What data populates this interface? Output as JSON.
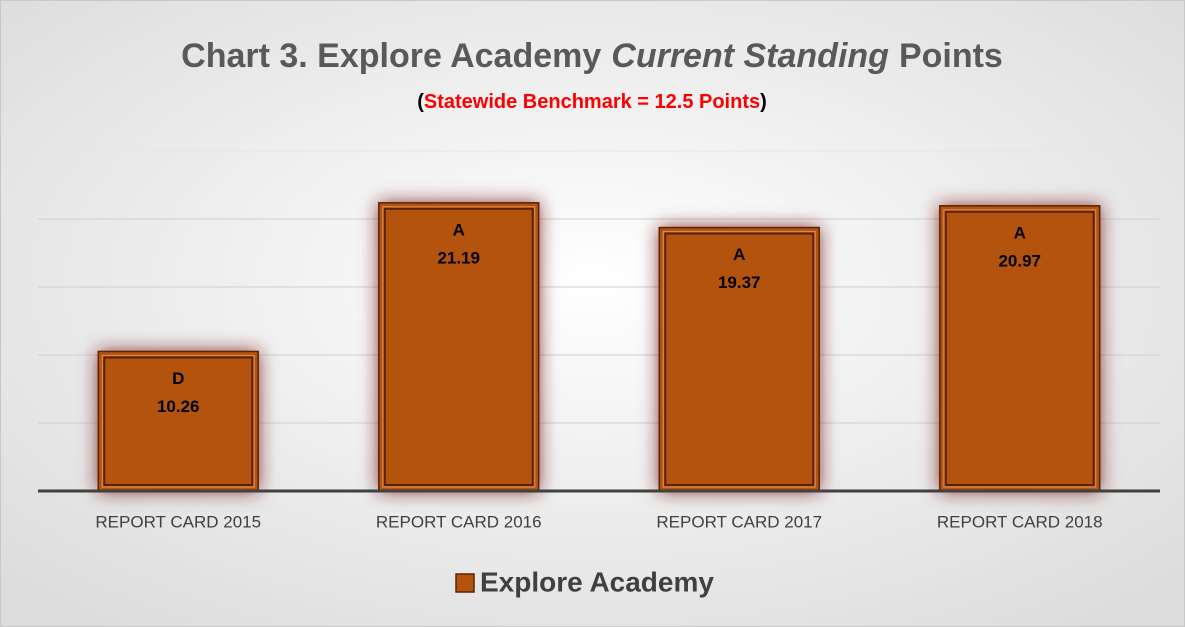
{
  "chart_data": {
    "type": "bar",
    "title": [
      "Chart 3. Explore Academy",
      "Current Standing",
      "Points"
    ],
    "subtitle": [
      "(",
      "Statewide Benchmark = 12.5 Points",
      ")"
    ],
    "categories": [
      "REPORT CARD 2015",
      "REPORT CARD 2016",
      "REPORT CARD 2017",
      "REPORT CARD 2018"
    ],
    "series": [
      {
        "name": "Explore Academy",
        "color": "#b4520e",
        "values": [
          10.26,
          21.19,
          19.37,
          20.97
        ]
      }
    ],
    "grades": [
      "D",
      "A",
      "A",
      "A"
    ],
    "ylim": [
      0,
      25
    ],
    "yticks": [
      0,
      5,
      10,
      15,
      20,
      25
    ],
    "grid": true,
    "legend": "bottom"
  }
}
